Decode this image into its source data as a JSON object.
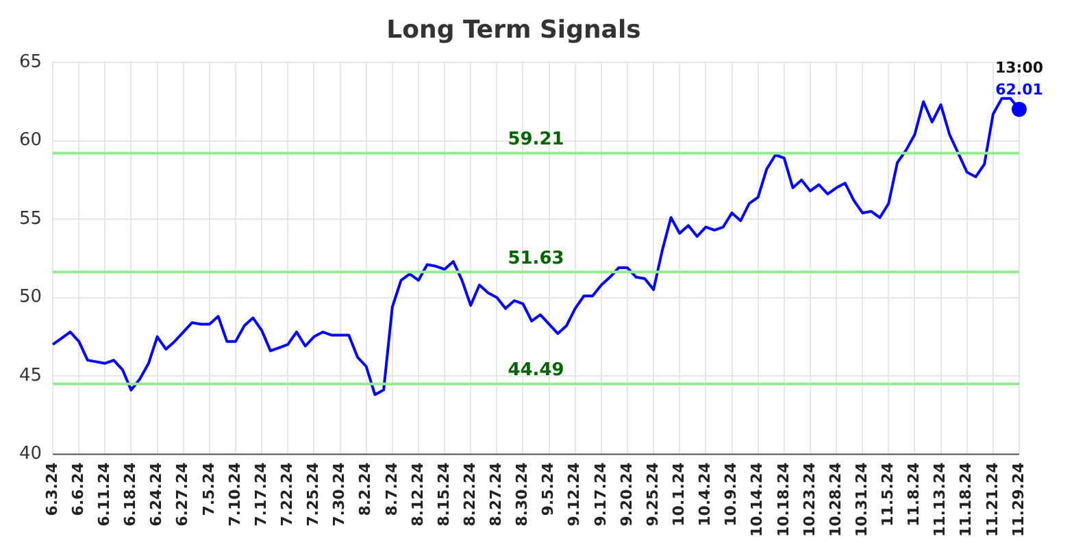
{
  "chart_data": {
    "type": "line",
    "title": "Long Term Signals",
    "categories": [
      "6.3.24",
      null,
      null,
      "6.6.24",
      null,
      null,
      "6.11.24",
      null,
      null,
      "6.18.24",
      null,
      null,
      "6.24.24",
      null,
      null,
      "6.27.24",
      null,
      null,
      "7.5.24",
      null,
      null,
      "7.10.24",
      null,
      null,
      "7.17.24",
      null,
      null,
      "7.22.24",
      null,
      null,
      "7.25.24",
      null,
      null,
      "7.30.24",
      null,
      null,
      "8.2.24",
      null,
      null,
      "8.7.24",
      null,
      null,
      "8.12.24",
      null,
      null,
      "8.15.24",
      null,
      null,
      "8.22.24",
      null,
      null,
      "8.27.24",
      null,
      null,
      "8.30.24",
      null,
      null,
      "9.5.24",
      null,
      null,
      "9.12.24",
      null,
      null,
      "9.17.24",
      null,
      null,
      "9.20.24",
      null,
      null,
      "9.25.24",
      null,
      null,
      "10.1.24",
      null,
      null,
      "10.4.24",
      null,
      null,
      "10.9.24",
      null,
      null,
      "10.14.24",
      null,
      null,
      "10.18.24",
      null,
      null,
      "10.23.24",
      null,
      null,
      "10.28.24",
      null,
      null,
      "10.31.24",
      null,
      null,
      "11.5.24",
      null,
      null,
      "11.8.24",
      null,
      null,
      "11.13.24",
      null,
      null,
      "11.18.24",
      null,
      null,
      "11.21.24",
      null,
      null,
      "11.29.24"
    ],
    "series": [
      {
        "color": "#0000ff",
        "marker": "none",
        "values": [
          47.0,
          47.4,
          47.8,
          47.2,
          46.0,
          45.9,
          45.8,
          46.0,
          45.4,
          44.1,
          44.8,
          45.8,
          47.5,
          46.7,
          47.2,
          47.8,
          48.4,
          48.3,
          48.3,
          48.8,
          47.2,
          47.2,
          48.2,
          48.7,
          47.9,
          46.6,
          46.8,
          47.0,
          47.8,
          46.9,
          47.5,
          47.8,
          47.6,
          47.6,
          47.6,
          46.2,
          45.6,
          43.8,
          44.1,
          49.4,
          51.1,
          51.5,
          51.1,
          52.1,
          52.0,
          51.8,
          52.3,
          51.1,
          49.5,
          50.8,
          50.3,
          50.0,
          49.3,
          49.8,
          49.6,
          48.5,
          48.9,
          48.3,
          47.7,
          48.2,
          49.3,
          50.1,
          50.1,
          50.8,
          51.3,
          51.9,
          51.9,
          51.3,
          51.2,
          50.5,
          53.0,
          55.1,
          54.1,
          54.6,
          53.9,
          54.5,
          54.3,
          54.5,
          55.4,
          54.9,
          56.0,
          56.4,
          58.2,
          59.1,
          58.9,
          57.0,
          57.5,
          56.8,
          57.2,
          56.6,
          57.0,
          57.3,
          56.2,
          55.4,
          55.5,
          55.1,
          56.0,
          58.6,
          59.4,
          60.4,
          62.5,
          61.2,
          62.3,
          60.4,
          59.2,
          58.0,
          57.7,
          58.5,
          61.7,
          62.7,
          62.7,
          62.01
        ]
      },
      {
        "type": "scatter",
        "color": "#0000ff",
        "marker": "circle",
        "x": [
          "11.29.24"
        ],
        "values": [
          62.01
        ],
        "value_labels": [
          "62.01"
        ]
      }
    ],
    "ylim": [
      40,
      65
    ],
    "yticks": [
      40,
      45,
      50,
      55,
      60,
      65
    ],
    "grid": true,
    "legend": false,
    "ref_lines": [
      {
        "axis": "y",
        "value": 59.21,
        "label": "59.21",
        "color": "#90ee90"
      },
      {
        "axis": "y",
        "value": 51.63,
        "label": "51.63",
        "color": "#90ee90"
      },
      {
        "axis": "y",
        "value": 44.49,
        "label": "44.49",
        "color": "#90ee90"
      }
    ],
    "annotations": [
      {
        "text": "13:00",
        "x": "11.29.24",
        "y": 62.01
      }
    ]
  }
}
